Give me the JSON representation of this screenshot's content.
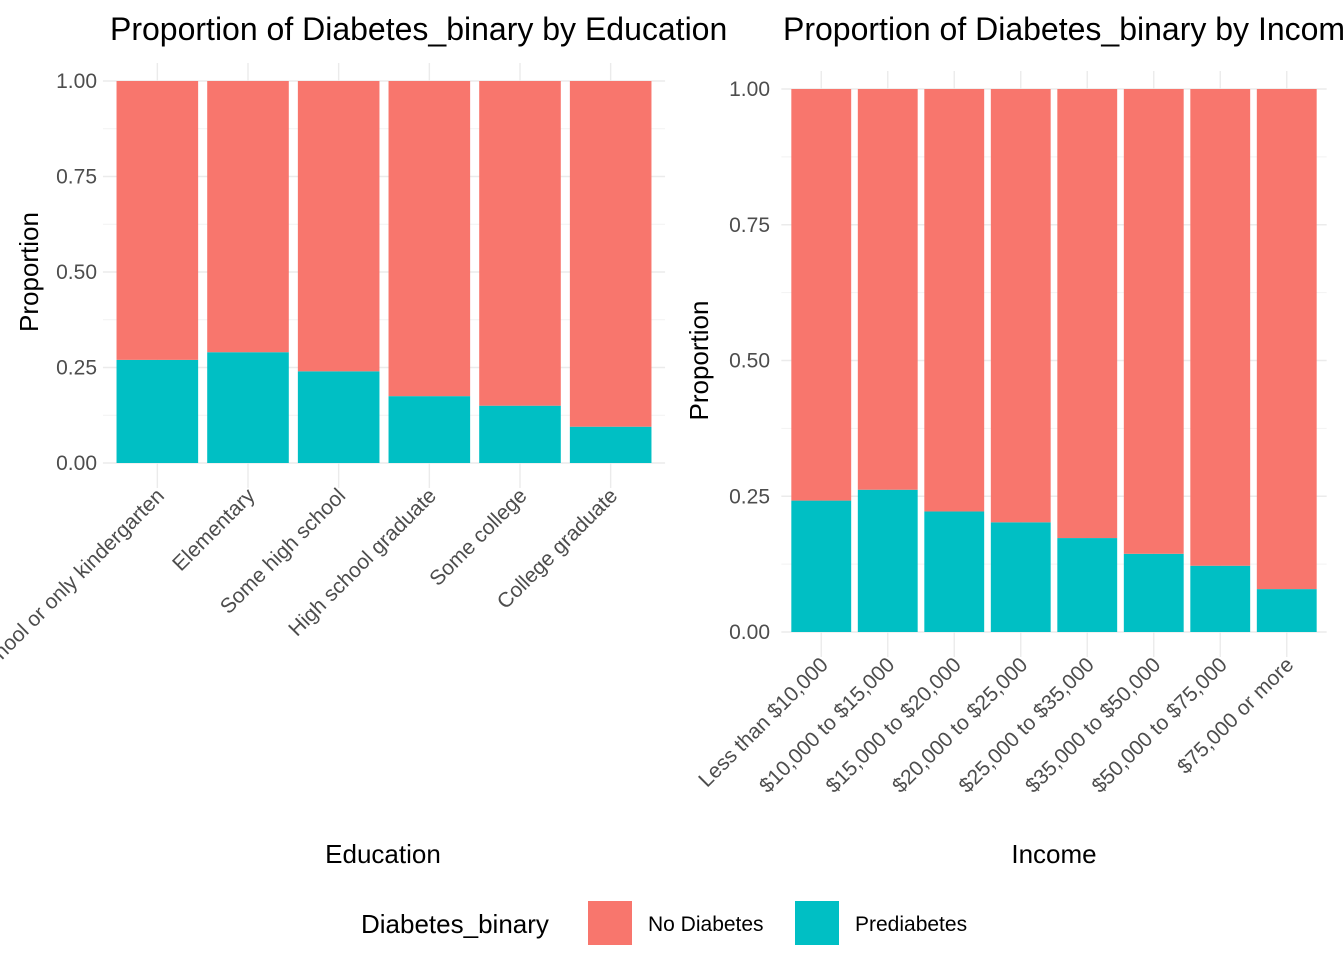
{
  "legend": {
    "title": "Diabetes_binary",
    "items": [
      {
        "label": "No Diabetes",
        "color": "#F8766D"
      },
      {
        "label": "Prediabetes",
        "color": "#00BFC4"
      }
    ]
  },
  "chart_data": [
    {
      "type": "bar",
      "stacked": true,
      "title": "Proportion of Diabetes_binary by Education",
      "xlabel": "Education",
      "ylabel": "Proportion",
      "ylim": [
        0,
        1
      ],
      "yticks": [
        "0.00",
        "0.25",
        "0.50",
        "0.75",
        "1.00"
      ],
      "categories": [
        "Never attended school or only kindergarten",
        "Elementary",
        "Some high school",
        "High school graduate",
        "Some college",
        "College graduate"
      ],
      "series": [
        {
          "name": "No Diabetes",
          "color": "#F8766D",
          "values": [
            0.73,
            0.71,
            0.76,
            0.825,
            0.85,
            0.905
          ]
        },
        {
          "name": "Prediabetes",
          "color": "#00BFC4",
          "values": [
            0.27,
            0.29,
            0.24,
            0.175,
            0.15,
            0.095
          ]
        }
      ]
    },
    {
      "type": "bar",
      "stacked": true,
      "title": "Proportion of Diabetes_binary by Income",
      "xlabel": "Income",
      "ylabel": "Proportion",
      "ylim": [
        0,
        1
      ],
      "yticks": [
        "0.00",
        "0.25",
        "0.50",
        "0.75",
        "1.00"
      ],
      "categories": [
        "Less than $10,000",
        "$10,000 to $15,000",
        "$15,000 to $20,000",
        "$20,000 to $25,000",
        "$25,000 to $35,000",
        "$35,000 to $50,000",
        "$50,000 to $75,000",
        "$75,000 or more"
      ],
      "series": [
        {
          "name": "No Diabetes",
          "color": "#F8766D",
          "values": [
            0.758,
            0.738,
            0.778,
            0.798,
            0.827,
            0.856,
            0.878,
            0.921
          ]
        },
        {
          "name": "Prediabetes",
          "color": "#00BFC4",
          "values": [
            0.242,
            0.262,
            0.222,
            0.202,
            0.173,
            0.144,
            0.122,
            0.079
          ]
        }
      ]
    }
  ]
}
